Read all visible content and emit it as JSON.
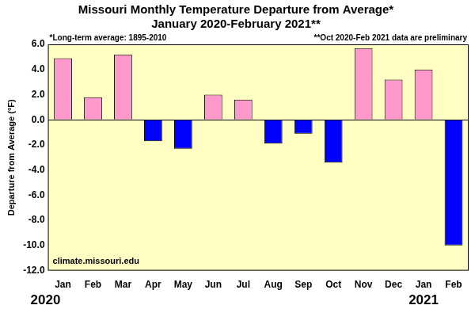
{
  "chart_data": {
    "type": "bar",
    "title": "Missouri Monthly Temperature Departure from Average*",
    "subtitle": "January 2020-February 2021**",
    "ylabel": "Departure from Average (°F)",
    "annotations": [
      "*Long-term average: 1895-2010",
      "**Oct 2020-Feb 2021 data are preliminary",
      "climate.missouri.edu",
      "2020",
      "2021"
    ],
    "categories": [
      "Jan",
      "Feb",
      "Mar",
      "Apr",
      "May",
      "Jun",
      "Jul",
      "Aug",
      "Sep",
      "Oct",
      "Nov",
      "Dec",
      "Jan",
      "Feb"
    ],
    "values": [
      4.9,
      1.8,
      5.2,
      -1.7,
      -2.3,
      2.0,
      1.6,
      -1.9,
      -1.1,
      -3.4,
      5.7,
      3.2,
      4.0,
      -10.0
    ],
    "colors": [
      "#ff99cc",
      "#ff99cc",
      "#ff99cc",
      "#0000ff",
      "#0000ff",
      "#ff99cc",
      "#ff99cc",
      "#0000ff",
      "#0000ff",
      "#0000ff",
      "#ff99cc",
      "#ff99cc",
      "#ff99cc",
      "#0000ff"
    ],
    "ylim": [
      -12,
      6
    ],
    "yticks": [
      {
        "value": -12,
        "label": "-12.0"
      },
      {
        "value": -10,
        "label": "-10.0"
      },
      {
        "value": -8,
        "label": "-8.0"
      },
      {
        "value": -6,
        "label": "-6.0"
      },
      {
        "value": -4,
        "label": "-4.0"
      },
      {
        "value": -2,
        "label": "-2.0"
      },
      {
        "value": 0,
        "label": "0.0"
      },
      {
        "value": 2,
        "label": "2.0"
      },
      {
        "value": 4,
        "label": "4.0"
      },
      {
        "value": 6,
        "label": "6.0"
      }
    ],
    "grid": false
  }
}
